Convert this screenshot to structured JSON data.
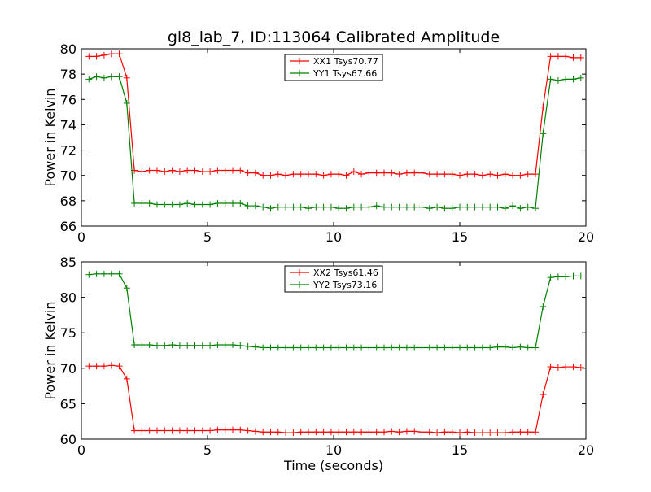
{
  "chart_data": [
    {
      "type": "line",
      "title": "gl8_lab_7, ID:113064 Calibrated Amplitude",
      "xlabel": "",
      "ylabel": "Power in Kelvin",
      "xlim": [
        0,
        20
      ],
      "ylim": [
        66,
        80
      ],
      "xticks": [
        "0",
        "5",
        "10",
        "15",
        "20"
      ],
      "yticks": [
        "66",
        "68",
        "70",
        "72",
        "74",
        "76",
        "78",
        "80"
      ],
      "legend_position": "top-center",
      "x": [
        0.3,
        0.6,
        0.9,
        1.2,
        1.5,
        1.8,
        2.1,
        2.4,
        2.7,
        3.0,
        3.3,
        3.6,
        3.9,
        4.2,
        4.5,
        4.8,
        5.1,
        5.4,
        5.7,
        6.0,
        6.3,
        6.6,
        6.9,
        7.2,
        7.5,
        7.8,
        8.1,
        8.4,
        8.7,
        9.0,
        9.3,
        9.6,
        9.9,
        10.2,
        10.5,
        10.8,
        11.1,
        11.4,
        11.7,
        12.0,
        12.3,
        12.6,
        12.9,
        13.2,
        13.5,
        13.8,
        14.1,
        14.4,
        14.7,
        15.0,
        15.3,
        15.6,
        15.9,
        16.2,
        16.5,
        16.8,
        17.1,
        17.4,
        17.7,
        18.0,
        18.3,
        18.6,
        18.9,
        19.2,
        19.5,
        19.8
      ],
      "series": [
        {
          "name": "XX1 Tsys70.77",
          "color": "#ff0000",
          "values": [
            79.4,
            79.4,
            79.5,
            79.6,
            79.6,
            77.7,
            70.4,
            70.3,
            70.4,
            70.4,
            70.3,
            70.4,
            70.3,
            70.4,
            70.4,
            70.3,
            70.3,
            70.4,
            70.4,
            70.4,
            70.4,
            70.2,
            70.2,
            70.0,
            70.0,
            70.1,
            70.0,
            70.1,
            70.1,
            70.1,
            70.1,
            70.0,
            70.1,
            70.1,
            70.0,
            70.3,
            70.1,
            70.2,
            70.2,
            70.2,
            70.2,
            70.1,
            70.2,
            70.2,
            70.2,
            70.1,
            70.1,
            70.1,
            70.1,
            70.0,
            70.1,
            70.1,
            70.0,
            70.1,
            70.0,
            70.1,
            70.0,
            70.0,
            70.1,
            70.1,
            75.4,
            79.4,
            79.4,
            79.4,
            79.3,
            79.3
          ]
        },
        {
          "name": "YY1 Tsys67.66",
          "color": "#008000",
          "values": [
            77.6,
            77.8,
            77.7,
            77.8,
            77.8,
            75.7,
            67.8,
            67.8,
            67.8,
            67.7,
            67.7,
            67.7,
            67.7,
            67.8,
            67.7,
            67.7,
            67.7,
            67.8,
            67.8,
            67.8,
            67.8,
            67.6,
            67.6,
            67.5,
            67.4,
            67.5,
            67.5,
            67.5,
            67.5,
            67.4,
            67.5,
            67.5,
            67.5,
            67.4,
            67.4,
            67.5,
            67.5,
            67.5,
            67.6,
            67.5,
            67.5,
            67.5,
            67.5,
            67.5,
            67.5,
            67.4,
            67.5,
            67.4,
            67.4,
            67.5,
            67.5,
            67.5,
            67.5,
            67.5,
            67.5,
            67.4,
            67.6,
            67.4,
            67.5,
            67.4,
            73.3,
            77.6,
            77.5,
            77.6,
            77.6,
            77.7
          ]
        }
      ]
    },
    {
      "type": "line",
      "title": "",
      "xlabel": "Time (seconds)",
      "ylabel": "Power in Kelvin",
      "xlim": [
        0,
        20
      ],
      "ylim": [
        60,
        85
      ],
      "xticks": [
        "0",
        "5",
        "10",
        "15",
        "20"
      ],
      "yticks": [
        "60",
        "65",
        "70",
        "75",
        "80",
        "85"
      ],
      "legend_position": "top-center",
      "x": [
        0.3,
        0.6,
        0.9,
        1.2,
        1.5,
        1.8,
        2.1,
        2.4,
        2.7,
        3.0,
        3.3,
        3.6,
        3.9,
        4.2,
        4.5,
        4.8,
        5.1,
        5.4,
        5.7,
        6.0,
        6.3,
        6.6,
        6.9,
        7.2,
        7.5,
        7.8,
        8.1,
        8.4,
        8.7,
        9.0,
        9.3,
        9.6,
        9.9,
        10.2,
        10.5,
        10.8,
        11.1,
        11.4,
        11.7,
        12.0,
        12.3,
        12.6,
        12.9,
        13.2,
        13.5,
        13.8,
        14.1,
        14.4,
        14.7,
        15.0,
        15.3,
        15.6,
        15.9,
        16.2,
        16.5,
        16.8,
        17.1,
        17.4,
        17.7,
        18.0,
        18.3,
        18.6,
        18.9,
        19.2,
        19.5,
        19.8
      ],
      "series": [
        {
          "name": "XX2 Tsys61.46",
          "color": "#ff0000",
          "values": [
            70.3,
            70.3,
            70.3,
            70.4,
            70.3,
            68.5,
            61.2,
            61.2,
            61.2,
            61.2,
            61.2,
            61.2,
            61.2,
            61.2,
            61.2,
            61.2,
            61.2,
            61.3,
            61.3,
            61.3,
            61.3,
            61.2,
            61.1,
            61.0,
            61.0,
            61.0,
            60.9,
            60.9,
            61.0,
            61.0,
            61.0,
            61.0,
            61.0,
            61.0,
            61.0,
            61.0,
            61.0,
            61.0,
            61.0,
            61.0,
            61.1,
            61.0,
            61.1,
            61.1,
            61.0,
            61.0,
            60.9,
            61.0,
            61.0,
            60.9,
            61.0,
            60.9,
            60.9,
            60.9,
            60.9,
            60.9,
            61.0,
            61.0,
            61.0,
            61.0,
            66.3,
            70.2,
            70.1,
            70.2,
            70.2,
            70.1
          ]
        },
        {
          "name": "YY2 Tsys73.16",
          "color": "#008000",
          "values": [
            83.2,
            83.3,
            83.3,
            83.3,
            83.3,
            81.3,
            73.3,
            73.3,
            73.3,
            73.2,
            73.2,
            73.3,
            73.2,
            73.2,
            73.2,
            73.2,
            73.2,
            73.3,
            73.3,
            73.3,
            73.2,
            73.1,
            73.0,
            72.9,
            72.9,
            72.9,
            72.9,
            72.9,
            72.9,
            72.9,
            72.9,
            72.9,
            72.9,
            72.9,
            72.9,
            72.9,
            72.9,
            72.9,
            72.9,
            72.9,
            72.9,
            72.9,
            72.9,
            72.9,
            72.9,
            72.9,
            72.9,
            72.9,
            72.9,
            72.9,
            72.9,
            72.9,
            72.9,
            72.9,
            73.0,
            73.0,
            72.9,
            73.0,
            72.9,
            72.9,
            78.7,
            82.8,
            82.9,
            82.9,
            83.0,
            83.0
          ]
        }
      ]
    }
  ]
}
